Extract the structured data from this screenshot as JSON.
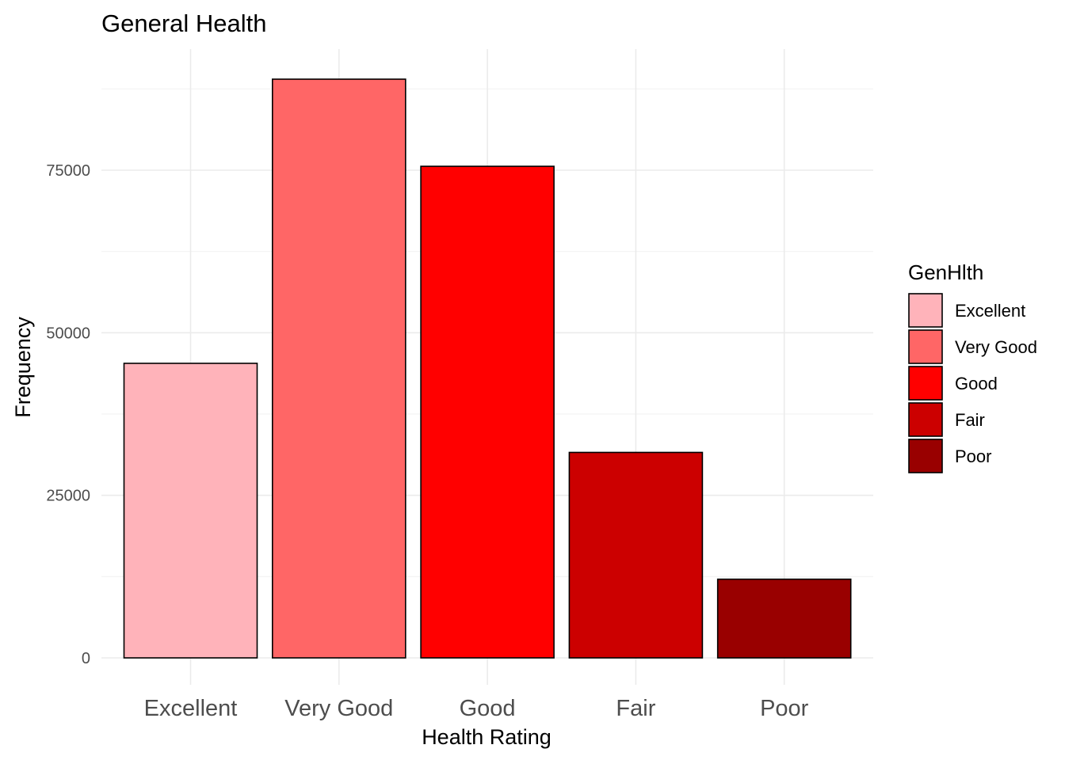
{
  "chart_data": {
    "type": "bar",
    "title": "General Health",
    "xlabel": "Health Rating",
    "ylabel": "Frequency",
    "categories": [
      "Excellent",
      "Very Good",
      "Good",
      "Fair",
      "Poor"
    ],
    "values": [
      45300,
      89000,
      75600,
      31600,
      12100
    ],
    "colors": [
      "#FFB3BA",
      "#FF6666",
      "#FF0000",
      "#CC0000",
      "#990000"
    ],
    "bar_outline": "#000000",
    "ylim": [
      0,
      95000
    ],
    "yticks": [
      0,
      25000,
      50000,
      75000
    ],
    "ytick_labels": [
      "0",
      "25000",
      "50000",
      "75000"
    ],
    "grid": true,
    "legend": {
      "title": "GenHlth",
      "placement": "right",
      "entries": [
        "Excellent",
        "Very Good",
        "Good",
        "Fair",
        "Poor"
      ]
    }
  }
}
